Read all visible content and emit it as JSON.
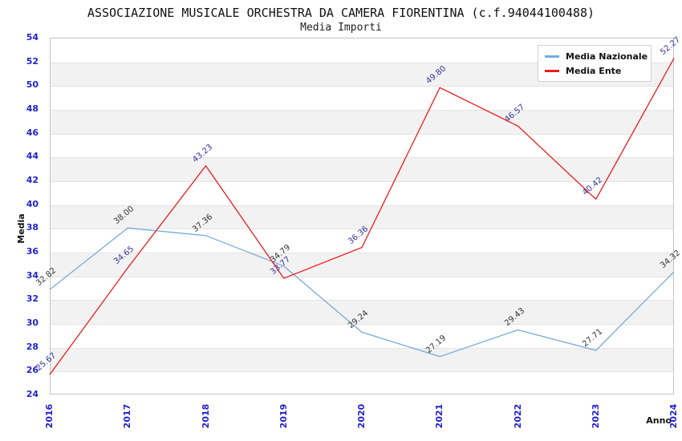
{
  "title": "ASSOCIAZIONE MUSICALE ORCHESTRA DA CAMERA FIORENTINA (c.f.94044100488)",
  "subtitle": "Media Importi",
  "chart_data": {
    "type": "line",
    "x": [
      2016,
      2017,
      2018,
      2019,
      2020,
      2021,
      2022,
      2023,
      2024
    ],
    "series": [
      {
        "name": "Media Nazionale",
        "color": "#7aaad8",
        "label_color": "#333333",
        "values": [
          32.82,
          38.0,
          37.36,
          34.79,
          29.24,
          27.19,
          29.43,
          27.71,
          34.32
        ]
      },
      {
        "name": "Media Ente",
        "color": "#ee1c1c",
        "label_color": "#333399",
        "values": [
          25.67,
          34.65,
          43.23,
          33.77,
          36.36,
          49.8,
          46.57,
          40.42,
          52.27
        ]
      }
    ],
    "xlabel": "Anno",
    "ylabel": "Media",
    "ylim": [
      24,
      54
    ],
    "ytick_step": 2,
    "grid": "horizontal-bands-alternating",
    "band_color": "#f2f2f2",
    "tick_color": "#2222cc",
    "legend_position": "top-right"
  }
}
